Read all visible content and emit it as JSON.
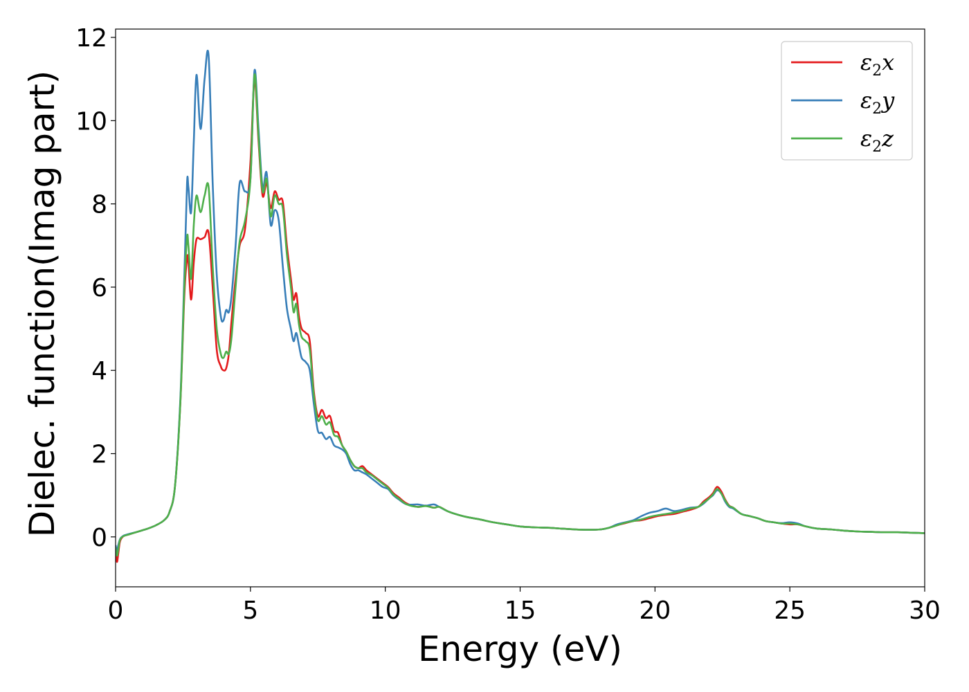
{
  "chart_data": {
    "type": "line",
    "title": "",
    "xlabel": "Energy (eV)",
    "ylabel": "Dielec. function(Imag part)",
    "xlim": [
      0,
      30
    ],
    "ylim": [
      -1.2,
      12.2
    ],
    "xticks": [
      0,
      5,
      10,
      15,
      20,
      25,
      30
    ],
    "yticks": [
      0,
      2,
      4,
      6,
      8,
      10,
      12
    ],
    "grid": false,
    "legend_position": "top-right",
    "series": [
      {
        "name": "ε₂x",
        "legend_base": "ε",
        "legend_sub": "2",
        "legend_var": "x",
        "color": "#e41a1c",
        "x": [
          0.0,
          0.05,
          0.1,
          0.15,
          0.2,
          0.3,
          0.5,
          0.8,
          1.0,
          1.2,
          1.5,
          1.8,
          2.0,
          2.2,
          2.4,
          2.55,
          2.65,
          2.7,
          2.8,
          2.9,
          3.0,
          3.15,
          3.3,
          3.45,
          3.6,
          3.75,
          3.9,
          4.0,
          4.1,
          4.2,
          4.3,
          4.45,
          4.6,
          4.8,
          5.0,
          5.15,
          5.3,
          5.45,
          5.6,
          5.75,
          5.9,
          6.05,
          6.2,
          6.35,
          6.5,
          6.6,
          6.7,
          6.8,
          6.9,
          7.05,
          7.2,
          7.35,
          7.5,
          7.65,
          7.8,
          7.95,
          8.1,
          8.25,
          8.4,
          8.55,
          8.7,
          8.85,
          9.0,
          9.15,
          9.3,
          9.5,
          9.7,
          9.9,
          10.1,
          10.3,
          10.5,
          10.8,
          11.2,
          11.5,
          11.8,
          12.0,
          12.3,
          12.6,
          13.0,
          13.5,
          14.0,
          14.5,
          15.0,
          15.5,
          16.0,
          16.5,
          17.0,
          17.5,
          18.0,
          18.3,
          18.6,
          18.9,
          19.2,
          19.5,
          19.8,
          20.1,
          20.4,
          20.7,
          21.0,
          21.3,
          21.6,
          21.8,
          22.0,
          22.15,
          22.3,
          22.45,
          22.6,
          22.75,
          22.9,
          23.2,
          23.5,
          23.8,
          24.1,
          24.4,
          24.7,
          25.0,
          25.3,
          25.6,
          26.0,
          26.5,
          27.0,
          27.5,
          28.0,
          28.5,
          29.0,
          29.5,
          30.0
        ],
        "y": [
          -0.3,
          -0.6,
          -0.4,
          -0.15,
          -0.05,
          0.02,
          0.06,
          0.12,
          0.16,
          0.2,
          0.28,
          0.4,
          0.6,
          1.2,
          3.2,
          5.8,
          6.7,
          6.6,
          5.7,
          6.6,
          7.15,
          7.15,
          7.2,
          7.3,
          6.0,
          4.5,
          4.1,
          4.0,
          4.05,
          4.4,
          5.2,
          6.2,
          7.0,
          7.4,
          9.0,
          11.0,
          9.5,
          8.2,
          8.5,
          7.9,
          8.3,
          8.1,
          8.05,
          7.0,
          6.2,
          5.7,
          5.85,
          5.3,
          5.0,
          4.9,
          4.7,
          3.5,
          2.9,
          3.05,
          2.85,
          2.9,
          2.55,
          2.5,
          2.2,
          2.05,
          1.85,
          1.7,
          1.65,
          1.7,
          1.6,
          1.5,
          1.4,
          1.3,
          1.2,
          1.05,
          0.95,
          0.8,
          0.72,
          0.75,
          0.7,
          0.72,
          0.62,
          0.55,
          0.48,
          0.42,
          0.35,
          0.3,
          0.25,
          0.23,
          0.22,
          0.2,
          0.18,
          0.17,
          0.18,
          0.22,
          0.28,
          0.33,
          0.38,
          0.4,
          0.45,
          0.5,
          0.53,
          0.55,
          0.6,
          0.65,
          0.72,
          0.85,
          0.95,
          1.05,
          1.2,
          1.1,
          0.9,
          0.75,
          0.7,
          0.55,
          0.5,
          0.45,
          0.38,
          0.35,
          0.32,
          0.3,
          0.3,
          0.25,
          0.2,
          0.18,
          0.15,
          0.13,
          0.12,
          0.11,
          0.11,
          0.1,
          0.09
        ]
      },
      {
        "name": "ε₂y",
        "legend_base": "ε",
        "legend_sub": "2",
        "legend_var": "y",
        "color": "#377eb8",
        "x": [
          0.0,
          0.05,
          0.1,
          0.15,
          0.2,
          0.3,
          0.5,
          0.8,
          1.0,
          1.2,
          1.5,
          1.8,
          2.0,
          2.2,
          2.4,
          2.55,
          2.65,
          2.7,
          2.8,
          2.9,
          3.0,
          3.15,
          3.3,
          3.45,
          3.6,
          3.75,
          3.9,
          4.0,
          4.1,
          4.2,
          4.3,
          4.45,
          4.6,
          4.8,
          5.0,
          5.15,
          5.3,
          5.45,
          5.6,
          5.75,
          5.9,
          6.05,
          6.2,
          6.35,
          6.5,
          6.6,
          6.7,
          6.8,
          6.9,
          7.05,
          7.2,
          7.35,
          7.5,
          7.65,
          7.8,
          7.95,
          8.1,
          8.25,
          8.4,
          8.55,
          8.7,
          8.85,
          9.0,
          9.15,
          9.3,
          9.5,
          9.7,
          9.9,
          10.1,
          10.3,
          10.5,
          10.8,
          11.2,
          11.5,
          11.8,
          12.0,
          12.3,
          12.6,
          13.0,
          13.5,
          14.0,
          14.5,
          15.0,
          15.5,
          16.0,
          16.5,
          17.0,
          17.5,
          18.0,
          18.3,
          18.6,
          18.9,
          19.2,
          19.5,
          19.8,
          20.1,
          20.4,
          20.7,
          21.0,
          21.3,
          21.6,
          21.8,
          22.0,
          22.15,
          22.3,
          22.45,
          22.6,
          22.75,
          22.9,
          23.2,
          23.5,
          23.8,
          24.1,
          24.4,
          24.7,
          25.0,
          25.3,
          25.6,
          26.0,
          26.5,
          27.0,
          27.5,
          28.0,
          28.5,
          29.0,
          29.5,
          30.0
        ],
        "y": [
          -0.2,
          -0.35,
          -0.2,
          -0.08,
          -0.02,
          0.03,
          0.07,
          0.12,
          0.16,
          0.2,
          0.28,
          0.4,
          0.6,
          1.2,
          3.3,
          6.3,
          8.5,
          8.4,
          7.8,
          9.5,
          11.1,
          9.8,
          11.0,
          11.55,
          8.5,
          6.3,
          5.3,
          5.2,
          5.45,
          5.4,
          5.8,
          7.0,
          8.5,
          8.3,
          8.6,
          11.2,
          9.8,
          8.4,
          8.75,
          7.5,
          7.85,
          7.6,
          6.5,
          5.5,
          5.0,
          4.7,
          4.9,
          4.6,
          4.3,
          4.2,
          4.0,
          3.2,
          2.55,
          2.5,
          2.35,
          2.4,
          2.2,
          2.15,
          2.1,
          2.0,
          1.75,
          1.6,
          1.6,
          1.55,
          1.5,
          1.4,
          1.3,
          1.2,
          1.15,
          1.0,
          0.9,
          0.78,
          0.78,
          0.75,
          0.78,
          0.72,
          0.62,
          0.55,
          0.48,
          0.42,
          0.35,
          0.3,
          0.25,
          0.23,
          0.22,
          0.2,
          0.18,
          0.17,
          0.18,
          0.22,
          0.3,
          0.35,
          0.4,
          0.5,
          0.58,
          0.62,
          0.68,
          0.62,
          0.65,
          0.7,
          0.72,
          0.8,
          0.92,
          1.0,
          1.12,
          1.05,
          0.85,
          0.72,
          0.68,
          0.55,
          0.5,
          0.45,
          0.38,
          0.35,
          0.33,
          0.35,
          0.32,
          0.25,
          0.2,
          0.18,
          0.15,
          0.13,
          0.12,
          0.11,
          0.11,
          0.1,
          0.09
        ]
      },
      {
        "name": "ε₂z",
        "legend_base": "ε",
        "legend_sub": "2",
        "legend_var": "z",
        "color": "#4daf4a",
        "x": [
          0.0,
          0.05,
          0.1,
          0.15,
          0.2,
          0.3,
          0.5,
          0.8,
          1.0,
          1.2,
          1.5,
          1.8,
          2.0,
          2.2,
          2.4,
          2.55,
          2.65,
          2.7,
          2.8,
          2.9,
          3.0,
          3.15,
          3.3,
          3.45,
          3.6,
          3.75,
          3.9,
          4.0,
          4.1,
          4.2,
          4.3,
          4.45,
          4.6,
          4.8,
          5.0,
          5.15,
          5.3,
          5.45,
          5.6,
          5.75,
          5.9,
          6.05,
          6.2,
          6.35,
          6.5,
          6.6,
          6.7,
          6.8,
          6.9,
          7.05,
          7.2,
          7.35,
          7.5,
          7.65,
          7.8,
          7.95,
          8.1,
          8.25,
          8.4,
          8.55,
          8.7,
          8.85,
          9.0,
          9.15,
          9.3,
          9.5,
          9.7,
          9.9,
          10.1,
          10.3,
          10.5,
          10.8,
          11.2,
          11.5,
          11.8,
          12.0,
          12.3,
          12.6,
          13.0,
          13.5,
          14.0,
          14.5,
          15.0,
          15.5,
          16.0,
          16.5,
          17.0,
          17.5,
          18.0,
          18.3,
          18.6,
          18.9,
          19.2,
          19.5,
          19.8,
          20.1,
          20.4,
          20.7,
          21.0,
          21.3,
          21.6,
          21.8,
          22.0,
          22.15,
          22.3,
          22.45,
          22.6,
          22.75,
          22.9,
          23.2,
          23.5,
          23.8,
          24.1,
          24.4,
          24.7,
          25.0,
          25.3,
          25.6,
          26.0,
          26.5,
          27.0,
          27.5,
          28.0,
          28.5,
          29.0,
          29.5,
          30.0
        ],
        "y": [
          -0.25,
          -0.45,
          -0.3,
          -0.1,
          -0.03,
          0.02,
          0.06,
          0.12,
          0.16,
          0.2,
          0.28,
          0.4,
          0.6,
          1.2,
          3.2,
          6.0,
          7.2,
          7.0,
          6.2,
          7.5,
          8.2,
          7.8,
          8.2,
          8.4,
          6.5,
          5.0,
          4.4,
          4.3,
          4.45,
          4.4,
          4.8,
          6.0,
          7.1,
          7.6,
          8.6,
          11.1,
          9.6,
          8.3,
          8.6,
          7.7,
          8.2,
          8.0,
          7.9,
          6.8,
          6.0,
          5.4,
          5.6,
          5.1,
          4.8,
          4.7,
          4.5,
          3.4,
          2.8,
          2.9,
          2.7,
          2.75,
          2.45,
          2.4,
          2.2,
          2.05,
          1.85,
          1.7,
          1.65,
          1.65,
          1.55,
          1.48,
          1.38,
          1.28,
          1.18,
          1.02,
          0.92,
          0.78,
          0.72,
          0.74,
          0.7,
          0.72,
          0.62,
          0.55,
          0.48,
          0.42,
          0.35,
          0.3,
          0.25,
          0.23,
          0.22,
          0.2,
          0.18,
          0.17,
          0.18,
          0.22,
          0.28,
          0.34,
          0.38,
          0.42,
          0.48,
          0.52,
          0.55,
          0.58,
          0.62,
          0.68,
          0.72,
          0.82,
          0.92,
          1.02,
          1.15,
          1.05,
          0.88,
          0.74,
          0.7,
          0.55,
          0.5,
          0.45,
          0.38,
          0.35,
          0.32,
          0.32,
          0.3,
          0.25,
          0.2,
          0.18,
          0.15,
          0.13,
          0.12,
          0.11,
          0.11,
          0.1,
          0.09
        ]
      }
    ]
  }
}
